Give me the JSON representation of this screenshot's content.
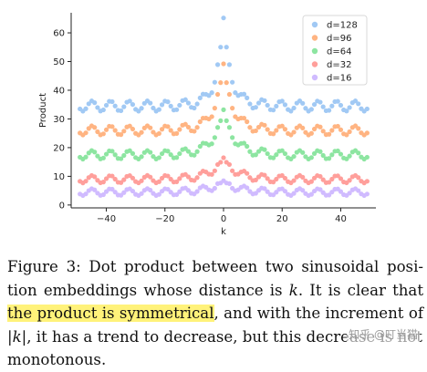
{
  "chart_data": {
    "type": "scatter",
    "xlabel": "k",
    "ylabel": "Product",
    "xlim": [
      -52,
      52
    ],
    "ylim": [
      -1,
      67
    ],
    "xticks": [
      -40,
      -20,
      0,
      20,
      40
    ],
    "xtick_labels": [
      "−40",
      "−20",
      "0",
      "20",
      "40"
    ],
    "yticks": [
      0,
      10,
      20,
      30,
      40,
      50,
      60
    ],
    "ytick_labels": [
      "0",
      "10",
      "20",
      "30",
      "40",
      "50",
      "60"
    ],
    "grid": false,
    "legend": "top-right",
    "x_range": [
      -49,
      49
    ],
    "series": [
      {
        "name": "d=128",
        "color": "#a1c9f4",
        "peak": 64,
        "decay": 0.42,
        "floor": 34.5,
        "wave_amp": 1.8,
        "wave_period": 6.3
      },
      {
        "name": "d=96",
        "color": "#ffb482",
        "peak": 48,
        "decay": 0.35,
        "floor": 26,
        "wave_amp": 1.6,
        "wave_period": 6.3
      },
      {
        "name": "d=64",
        "color": "#8de5a1",
        "peak": 32,
        "decay": 0.3,
        "floor": 17.5,
        "wave_amp": 1.5,
        "wave_period": 6.3
      },
      {
        "name": "d=32",
        "color": "#ff9f9b",
        "peak": 16,
        "decay": 0.25,
        "floor": 9,
        "wave_amp": 1.3,
        "wave_period": 6.3
      },
      {
        "name": "d=16",
        "color": "#d0bbff",
        "peak": 8,
        "decay": 0.25,
        "floor": 4.5,
        "wave_amp": 1.2,
        "wave_period": 6.3
      }
    ]
  },
  "caption": {
    "line1": "Figure 3:  Dot product between two sinusoidal posi-",
    "line2_a": "tion embeddings whose distance is ",
    "line2_k": "k",
    "line2_b": ".  It is clear that",
    "line3_highlight": "the product is symmetrical",
    "line3_rest": ", and with the increment of",
    "line4_abs": "|k|",
    "line4_rest": ", it has a trend to decrease, but this decrease is not",
    "line5": "monotonous."
  },
  "watermark": "知乎 @叮当猫"
}
